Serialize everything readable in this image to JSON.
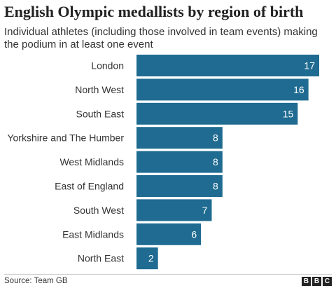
{
  "chart_data": {
    "type": "bar",
    "orientation": "horizontal",
    "title": "English Olympic medallists by region of birth",
    "subtitle": "Individual athletes (including those involved in team events) making the podium in at least one event",
    "categories": [
      "London",
      "North West",
      "South East",
      "Yorkshire and The Humber",
      "West Midlands",
      "East of England",
      "South West",
      "East Midlands",
      "North East"
    ],
    "values": [
      17,
      16,
      15,
      8,
      8,
      8,
      7,
      6,
      2
    ],
    "xlim": [
      0,
      17
    ],
    "grid": false,
    "data_labels": true,
    "bar_color": "#1f6b91",
    "label_color": "#ffffff"
  },
  "footer": {
    "source": "Source: Team GB",
    "logo_letters": [
      "B",
      "B",
      "C"
    ]
  }
}
